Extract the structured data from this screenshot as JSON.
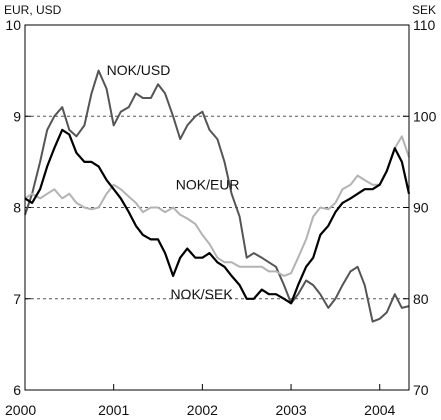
{
  "chart_data": {
    "type": "line",
    "left_axis": {
      "label": "EUR, USD",
      "ylim": [
        6,
        10
      ],
      "ticks": [
        "6",
        "7",
        "8",
        "9",
        "10"
      ]
    },
    "right_axis": {
      "label": "SEK",
      "ylim": [
        70,
        110
      ],
      "ticks": [
        "70",
        "80",
        "90",
        "100",
        "110"
      ]
    },
    "x_axis": {
      "xlim": [
        2000.0,
        2004.33
      ],
      "ticks": [
        "2000",
        "2001",
        "2002",
        "2003",
        "2004"
      ]
    },
    "grid": "horizontal dashed at 7, 8 and 9 on left axis",
    "series": [
      {
        "name": "NOK/USD",
        "axis": "left",
        "color": "#555555",
        "points": [
          [
            2000.0,
            7.92
          ],
          [
            2000.08,
            8.15
          ],
          [
            2000.17,
            8.5
          ],
          [
            2000.25,
            8.85
          ],
          [
            2000.33,
            9.0
          ],
          [
            2000.42,
            9.1
          ],
          [
            2000.5,
            8.85
          ],
          [
            2000.58,
            8.78
          ],
          [
            2000.67,
            8.9
          ],
          [
            2000.75,
            9.25
          ],
          [
            2000.83,
            9.5
          ],
          [
            2000.92,
            9.3
          ],
          [
            2001.0,
            8.9
          ],
          [
            2001.08,
            9.05
          ],
          [
            2001.17,
            9.1
          ],
          [
            2001.25,
            9.25
          ],
          [
            2001.33,
            9.2
          ],
          [
            2001.42,
            9.2
          ],
          [
            2001.5,
            9.35
          ],
          [
            2001.58,
            9.25
          ],
          [
            2001.67,
            9.0
          ],
          [
            2001.75,
            8.75
          ],
          [
            2001.83,
            8.9
          ],
          [
            2001.92,
            9.0
          ],
          [
            2002.0,
            9.05
          ],
          [
            2002.08,
            8.85
          ],
          [
            2002.17,
            8.75
          ],
          [
            2002.25,
            8.5
          ],
          [
            2002.33,
            8.15
          ],
          [
            2002.42,
            7.9
          ],
          [
            2002.5,
            7.45
          ],
          [
            2002.58,
            7.5
          ],
          [
            2002.67,
            7.45
          ],
          [
            2002.75,
            7.4
          ],
          [
            2002.83,
            7.35
          ],
          [
            2002.92,
            7.15
          ],
          [
            2003.0,
            6.95
          ],
          [
            2003.08,
            7.05
          ],
          [
            2003.17,
            7.2
          ],
          [
            2003.25,
            7.15
          ],
          [
            2003.33,
            7.05
          ],
          [
            2003.42,
            6.9
          ],
          [
            2003.5,
            7.0
          ],
          [
            2003.58,
            7.15
          ],
          [
            2003.67,
            7.3
          ],
          [
            2003.75,
            7.35
          ],
          [
            2003.83,
            7.15
          ],
          [
            2003.92,
            6.75
          ],
          [
            2004.0,
            6.78
          ],
          [
            2004.08,
            6.85
          ],
          [
            2004.17,
            7.05
          ],
          [
            2004.25,
            6.9
          ],
          [
            2004.33,
            6.92
          ]
        ]
      },
      {
        "name": "NOK/EUR",
        "axis": "left",
        "color": "#b3b3b3",
        "points": [
          [
            2000.0,
            8.1
          ],
          [
            2000.08,
            8.15
          ],
          [
            2000.17,
            8.1
          ],
          [
            2000.25,
            8.15
          ],
          [
            2000.33,
            8.2
          ],
          [
            2000.42,
            8.1
          ],
          [
            2000.5,
            8.15
          ],
          [
            2000.58,
            8.05
          ],
          [
            2000.67,
            8.0
          ],
          [
            2000.75,
            7.98
          ],
          [
            2000.83,
            8.0
          ],
          [
            2000.92,
            8.15
          ],
          [
            2001.0,
            8.25
          ],
          [
            2001.08,
            8.2
          ],
          [
            2001.17,
            8.12
          ],
          [
            2001.25,
            8.05
          ],
          [
            2001.33,
            7.95
          ],
          [
            2001.42,
            8.0
          ],
          [
            2001.5,
            8.0
          ],
          [
            2001.58,
            7.95
          ],
          [
            2001.67,
            8.0
          ],
          [
            2001.75,
            7.92
          ],
          [
            2001.83,
            7.88
          ],
          [
            2001.92,
            7.82
          ],
          [
            2002.0,
            7.7
          ],
          [
            2002.08,
            7.6
          ],
          [
            2002.17,
            7.45
          ],
          [
            2002.25,
            7.4
          ],
          [
            2002.33,
            7.4
          ],
          [
            2002.42,
            7.35
          ],
          [
            2002.5,
            7.35
          ],
          [
            2002.58,
            7.35
          ],
          [
            2002.67,
            7.35
          ],
          [
            2002.75,
            7.3
          ],
          [
            2002.83,
            7.3
          ],
          [
            2002.92,
            7.25
          ],
          [
            2003.0,
            7.28
          ],
          [
            2003.08,
            7.45
          ],
          [
            2003.17,
            7.65
          ],
          [
            2003.25,
            7.9
          ],
          [
            2003.33,
            8.0
          ],
          [
            2003.42,
            7.98
          ],
          [
            2003.5,
            8.05
          ],
          [
            2003.58,
            8.2
          ],
          [
            2003.67,
            8.25
          ],
          [
            2003.75,
            8.35
          ],
          [
            2003.83,
            8.3
          ],
          [
            2003.92,
            8.25
          ],
          [
            2004.0,
            8.25
          ],
          [
            2004.08,
            8.4
          ],
          [
            2004.17,
            8.65
          ],
          [
            2004.25,
            8.78
          ],
          [
            2004.33,
            8.55
          ]
        ]
      },
      {
        "name": "NOK/SEK",
        "axis": "right",
        "color": "#000000",
        "points": [
          [
            2000.0,
            91.0
          ],
          [
            2000.08,
            90.5
          ],
          [
            2000.17,
            92.0
          ],
          [
            2000.25,
            94.5
          ],
          [
            2000.33,
            96.5
          ],
          [
            2000.42,
            98.5
          ],
          [
            2000.5,
            98.0
          ],
          [
            2000.58,
            96.0
          ],
          [
            2000.67,
            95.0
          ],
          [
            2000.75,
            95.0
          ],
          [
            2000.83,
            94.5
          ],
          [
            2000.92,
            93.0
          ],
          [
            2001.0,
            92.0
          ],
          [
            2001.08,
            91.0
          ],
          [
            2001.17,
            89.5
          ],
          [
            2001.25,
            88.0
          ],
          [
            2001.33,
            87.0
          ],
          [
            2001.42,
            86.5
          ],
          [
            2001.5,
            86.5
          ],
          [
            2001.58,
            85.0
          ],
          [
            2001.67,
            82.5
          ],
          [
            2001.75,
            84.5
          ],
          [
            2001.83,
            85.5
          ],
          [
            2001.92,
            84.5
          ],
          [
            2002.0,
            84.5
          ],
          [
            2002.08,
            85.0
          ],
          [
            2002.17,
            84.0
          ],
          [
            2002.25,
            83.5
          ],
          [
            2002.33,
            82.5
          ],
          [
            2002.42,
            81.5
          ],
          [
            2002.5,
            80.0
          ],
          [
            2002.58,
            80.0
          ],
          [
            2002.67,
            81.0
          ],
          [
            2002.75,
            80.5
          ],
          [
            2002.83,
            80.5
          ],
          [
            2002.92,
            80.0
          ],
          [
            2003.0,
            79.5
          ],
          [
            2003.08,
            81.5
          ],
          [
            2003.17,
            83.5
          ],
          [
            2003.25,
            84.5
          ],
          [
            2003.33,
            87.0
          ],
          [
            2003.42,
            88.0
          ],
          [
            2003.5,
            89.5
          ],
          [
            2003.58,
            90.5
          ],
          [
            2003.67,
            91.0
          ],
          [
            2003.75,
            91.5
          ],
          [
            2003.83,
            92.0
          ],
          [
            2003.92,
            92.0
          ],
          [
            2004.0,
            92.5
          ],
          [
            2004.08,
            94.0
          ],
          [
            2004.17,
            96.5
          ],
          [
            2004.25,
            95.0
          ],
          [
            2004.33,
            91.5
          ]
        ]
      }
    ],
    "annotations": [
      {
        "text": "NOK/USD",
        "series": "NOK/USD",
        "at": [
          2000.92,
          9.45
        ]
      },
      {
        "text": "NOK/EUR",
        "series": "NOK/EUR",
        "at": [
          2001.7,
          8.2
        ]
      },
      {
        "text": "NOK/SEK",
        "series": "NOK/SEK",
        "at": [
          2001.64,
          7.0
        ]
      }
    ]
  }
}
